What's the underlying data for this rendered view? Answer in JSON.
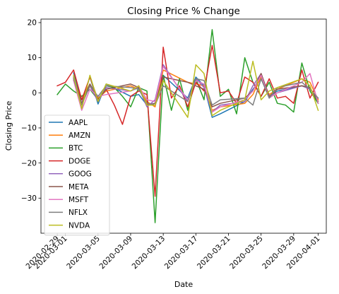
{
  "chart_data": {
    "type": "line",
    "title": "Closing Price % Change",
    "xlabel": "Date",
    "ylabel": "Closing Price",
    "ylim": [
      -40,
      21
    ],
    "yticks": [
      -30,
      -20,
      -10,
      0,
      10,
      20
    ],
    "xlim": [
      "2020-02-27",
      "2020-04-02"
    ],
    "xticks": [
      "2020-02-29",
      "2020-03-01",
      "2020-03-05",
      "2020-03-09",
      "2020-03-13",
      "2020-03-17",
      "2020-03-21",
      "2020-03-25",
      "2020-03-29",
      "2020-04-01"
    ],
    "grid": false,
    "legend_position": "lower-left",
    "series": [
      {
        "name": "AAPL",
        "color": "#1f77b4",
        "points": [
          [
            "2020-03-02",
            5.7
          ],
          [
            "2020-03-03",
            -3.2
          ],
          [
            "2020-03-04",
            4.6
          ],
          [
            "2020-03-05",
            -3.2
          ],
          [
            "2020-03-06",
            2.5
          ],
          [
            "2020-03-09",
            -1.0
          ],
          [
            "2020-03-10",
            -0.5
          ],
          [
            "2020-03-11",
            -3.5
          ],
          [
            "2020-03-12",
            -3.0
          ],
          [
            "2020-03-13",
            5.0
          ],
          [
            "2020-03-16",
            -1.5
          ],
          [
            "2020-03-17",
            4.5
          ],
          [
            "2020-03-18",
            2.0
          ],
          [
            "2020-03-19",
            -7.0
          ],
          [
            "2020-03-20",
            -6.0
          ],
          [
            "2020-03-23",
            -2.5
          ],
          [
            "2020-03-24",
            1.0
          ],
          [
            "2020-03-25",
            4.0
          ],
          [
            "2020-03-26",
            -1.0
          ],
          [
            "2020-03-27",
            0.5
          ],
          [
            "2020-03-30",
            2.0
          ],
          [
            "2020-03-31",
            1.5
          ],
          [
            "2020-04-01",
            -3.0
          ]
        ]
      },
      {
        "name": "AMZN",
        "color": "#ff7f0e",
        "points": [
          [
            "2020-03-02",
            3.5
          ],
          [
            "2020-03-03",
            -2.0
          ],
          [
            "2020-03-04",
            2.5
          ],
          [
            "2020-03-05",
            -1.5
          ],
          [
            "2020-03-06",
            0.5
          ],
          [
            "2020-03-09",
            2.0
          ],
          [
            "2020-03-10",
            1.0
          ],
          [
            "2020-03-11",
            -2.5
          ],
          [
            "2020-03-12",
            -4.0
          ],
          [
            "2020-03-13",
            6.5
          ],
          [
            "2020-03-16",
            3.0
          ],
          [
            "2020-03-17",
            2.5
          ],
          [
            "2020-03-18",
            2.0
          ],
          [
            "2020-03-19",
            -5.0
          ],
          [
            "2020-03-20",
            -4.0
          ],
          [
            "2020-03-23",
            -3.0
          ],
          [
            "2020-03-24",
            -0.5
          ],
          [
            "2020-03-25",
            4.5
          ],
          [
            "2020-03-26",
            -0.5
          ],
          [
            "2020-03-27",
            1.0
          ],
          [
            "2020-03-30",
            4.0
          ],
          [
            "2020-03-31",
            3.0
          ],
          [
            "2020-04-01",
            -2.0
          ]
        ]
      },
      {
        "name": "BTC",
        "color": "#2ca02c",
        "points": [
          [
            "2020-02-29",
            -0.5
          ],
          [
            "2020-03-01",
            2.5
          ],
          [
            "2020-03-02",
            0.5
          ],
          [
            "2020-03-03",
            -1.0
          ],
          [
            "2020-03-04",
            1.0
          ],
          [
            "2020-03-05",
            -2.0
          ],
          [
            "2020-03-06",
            2.0
          ],
          [
            "2020-03-07",
            1.5
          ],
          [
            "2020-03-08",
            -1.0
          ],
          [
            "2020-03-09",
            -4.0
          ],
          [
            "2020-03-10",
            1.5
          ],
          [
            "2020-03-11",
            0.5
          ],
          [
            "2020-03-12",
            -37.0
          ],
          [
            "2020-03-13",
            5.0
          ],
          [
            "2020-03-14",
            -5.0
          ],
          [
            "2020-03-15",
            4.0
          ],
          [
            "2020-03-16",
            -5.0
          ],
          [
            "2020-03-17",
            4.0
          ],
          [
            "2020-03-18",
            -2.0
          ],
          [
            "2020-03-19",
            18.0
          ],
          [
            "2020-03-20",
            -1.0
          ],
          [
            "2020-03-21",
            1.0
          ],
          [
            "2020-03-22",
            -6.0
          ],
          [
            "2020-03-23",
            10.0
          ],
          [
            "2020-03-24",
            3.0
          ],
          [
            "2020-03-25",
            -1.0
          ],
          [
            "2020-03-26",
            3.0
          ],
          [
            "2020-03-27",
            -3.0
          ],
          [
            "2020-03-28",
            -3.5
          ],
          [
            "2020-03-29",
            -5.5
          ],
          [
            "2020-03-30",
            8.5
          ],
          [
            "2020-03-31",
            0.5
          ],
          [
            "2020-04-01",
            -3.0
          ]
        ]
      },
      {
        "name": "DOGE",
        "color": "#d62728",
        "points": [
          [
            "2020-02-29",
            2.0
          ],
          [
            "2020-03-01",
            3.0
          ],
          [
            "2020-03-02",
            6.5
          ],
          [
            "2020-03-03",
            -2.0
          ],
          [
            "2020-03-04",
            4.5
          ],
          [
            "2020-03-05",
            -2.0
          ],
          [
            "2020-03-06",
            1.0
          ],
          [
            "2020-03-07",
            -3.5
          ],
          [
            "2020-03-08",
            -9.0
          ],
          [
            "2020-03-09",
            -1.0
          ],
          [
            "2020-03-10",
            0.5
          ],
          [
            "2020-03-11",
            -0.5
          ],
          [
            "2020-03-12",
            -29.5
          ],
          [
            "2020-03-13",
            13.0
          ],
          [
            "2020-03-14",
            -1.5
          ],
          [
            "2020-03-15",
            2.0
          ],
          [
            "2020-03-16",
            -4.0
          ],
          [
            "2020-03-17",
            3.0
          ],
          [
            "2020-03-18",
            0.5
          ],
          [
            "2020-03-19",
            13.5
          ],
          [
            "2020-03-20",
            0.0
          ],
          [
            "2020-03-21",
            0.5
          ],
          [
            "2020-03-22",
            -3.0
          ],
          [
            "2020-03-23",
            4.5
          ],
          [
            "2020-03-24",
            3.0
          ],
          [
            "2020-03-25",
            -1.0
          ],
          [
            "2020-03-26",
            4.0
          ],
          [
            "2020-03-27",
            -1.5
          ],
          [
            "2020-03-28",
            -1.0
          ],
          [
            "2020-03-29",
            -3.0
          ],
          [
            "2020-03-30",
            6.5
          ],
          [
            "2020-03-31",
            -1.5
          ],
          [
            "2020-04-01",
            3.0
          ]
        ]
      },
      {
        "name": "GOOG",
        "color": "#9467bd",
        "points": [
          [
            "2020-03-02",
            4.0
          ],
          [
            "2020-03-03",
            -3.0
          ],
          [
            "2020-03-04",
            2.0
          ],
          [
            "2020-03-05",
            -2.5
          ],
          [
            "2020-03-06",
            1.5
          ],
          [
            "2020-03-09",
            0.5
          ],
          [
            "2020-03-10",
            1.5
          ],
          [
            "2020-03-11",
            -4.0
          ],
          [
            "2020-03-12",
            -2.0
          ],
          [
            "2020-03-13",
            8.0
          ],
          [
            "2020-03-16",
            -2.5
          ],
          [
            "2020-03-17",
            4.0
          ],
          [
            "2020-03-18",
            1.5
          ],
          [
            "2020-03-19",
            -5.5
          ],
          [
            "2020-03-20",
            -3.5
          ],
          [
            "2020-03-23",
            -2.5
          ],
          [
            "2020-03-24",
            2.0
          ],
          [
            "2020-03-25",
            5.5
          ],
          [
            "2020-03-26",
            -1.0
          ],
          [
            "2020-03-27",
            0.0
          ],
          [
            "2020-03-30",
            2.0
          ],
          [
            "2020-03-31",
            1.0
          ],
          [
            "2020-04-01",
            -1.5
          ]
        ]
      },
      {
        "name": "META",
        "color": "#8c564b",
        "points": [
          [
            "2020-03-02",
            4.5
          ],
          [
            "2020-03-03",
            -3.0
          ],
          [
            "2020-03-04",
            2.5
          ],
          [
            "2020-03-05",
            -2.0
          ],
          [
            "2020-03-06",
            1.0
          ],
          [
            "2020-03-09",
            2.5
          ],
          [
            "2020-03-10",
            1.5
          ],
          [
            "2020-03-11",
            -3.5
          ],
          [
            "2020-03-12",
            -3.0
          ],
          [
            "2020-03-13",
            4.5
          ],
          [
            "2020-03-16",
            3.0
          ],
          [
            "2020-03-17",
            2.0
          ],
          [
            "2020-03-18",
            1.0
          ],
          [
            "2020-03-19",
            -4.0
          ],
          [
            "2020-03-20",
            -3.0
          ],
          [
            "2020-03-23",
            -1.5
          ],
          [
            "2020-03-24",
            0.5
          ],
          [
            "2020-03-25",
            5.5
          ],
          [
            "2020-03-26",
            -1.0
          ],
          [
            "2020-03-27",
            1.0
          ],
          [
            "2020-03-30",
            2.0
          ],
          [
            "2020-03-31",
            1.5
          ],
          [
            "2020-04-01",
            -2.5
          ]
        ]
      },
      {
        "name": "MSFT",
        "color": "#e377c2",
        "points": [
          [
            "2020-03-02",
            3.5
          ],
          [
            "2020-03-03",
            -5.0
          ],
          [
            "2020-03-04",
            1.0
          ],
          [
            "2020-03-05",
            -1.0
          ],
          [
            "2020-03-06",
            -0.5
          ],
          [
            "2020-03-09",
            0.5
          ],
          [
            "2020-03-10",
            2.0
          ],
          [
            "2020-03-11",
            -2.0
          ],
          [
            "2020-03-12",
            -2.5
          ],
          [
            "2020-03-13",
            7.5
          ],
          [
            "2020-03-16",
            -2.0
          ],
          [
            "2020-03-17",
            3.5
          ],
          [
            "2020-03-18",
            2.5
          ],
          [
            "2020-03-19",
            -5.5
          ],
          [
            "2020-03-20",
            -4.0
          ],
          [
            "2020-03-23",
            -2.0
          ],
          [
            "2020-03-24",
            0.5
          ],
          [
            "2020-03-25",
            5.0
          ],
          [
            "2020-03-26",
            -1.5
          ],
          [
            "2020-03-27",
            0.0
          ],
          [
            "2020-03-30",
            3.0
          ],
          [
            "2020-03-31",
            5.5
          ],
          [
            "2020-04-01",
            -3.0
          ]
        ]
      },
      {
        "name": "NFLX",
        "color": "#7f7f7f",
        "points": [
          [
            "2020-03-02",
            4.0
          ],
          [
            "2020-03-03",
            -3.5
          ],
          [
            "2020-03-04",
            2.0
          ],
          [
            "2020-03-05",
            -1.0
          ],
          [
            "2020-03-06",
            2.0
          ],
          [
            "2020-03-09",
            1.5
          ],
          [
            "2020-03-10",
            1.0
          ],
          [
            "2020-03-11",
            -3.0
          ],
          [
            "2020-03-12",
            -3.5
          ],
          [
            "2020-03-13",
            2.0
          ],
          [
            "2020-03-16",
            -2.5
          ],
          [
            "2020-03-17",
            4.0
          ],
          [
            "2020-03-18",
            3.5
          ],
          [
            "2020-03-19",
            -3.5
          ],
          [
            "2020-03-20",
            -2.0
          ],
          [
            "2020-03-23",
            -1.5
          ],
          [
            "2020-03-24",
            -3.5
          ],
          [
            "2020-03-25",
            4.0
          ],
          [
            "2020-03-26",
            -1.5
          ],
          [
            "2020-03-27",
            1.5
          ],
          [
            "2020-03-30",
            3.0
          ],
          [
            "2020-03-31",
            1.0
          ],
          [
            "2020-04-01",
            -1.5
          ]
        ]
      },
      {
        "name": "NVDA",
        "color": "#bcbd22",
        "points": [
          [
            "2020-03-02",
            5.0
          ],
          [
            "2020-03-03",
            -4.5
          ],
          [
            "2020-03-04",
            5.0
          ],
          [
            "2020-03-05",
            -2.5
          ],
          [
            "2020-03-06",
            2.5
          ],
          [
            "2020-03-09",
            0.5
          ],
          [
            "2020-03-10",
            2.0
          ],
          [
            "2020-03-11",
            -3.5
          ],
          [
            "2020-03-12",
            -3.5
          ],
          [
            "2020-03-13",
            3.5
          ],
          [
            "2020-03-16",
            -7.0
          ],
          [
            "2020-03-17",
            8.0
          ],
          [
            "2020-03-18",
            5.5
          ],
          [
            "2020-03-19",
            -6.5
          ],
          [
            "2020-03-20",
            -5.0
          ],
          [
            "2020-03-23",
            -2.0
          ],
          [
            "2020-03-24",
            9.0
          ],
          [
            "2020-03-25",
            -2.0
          ],
          [
            "2020-03-26",
            0.5
          ],
          [
            "2020-03-27",
            1.5
          ],
          [
            "2020-03-30",
            4.0
          ],
          [
            "2020-03-31",
            2.0
          ],
          [
            "2020-04-01",
            -5.0
          ]
        ]
      }
    ]
  }
}
